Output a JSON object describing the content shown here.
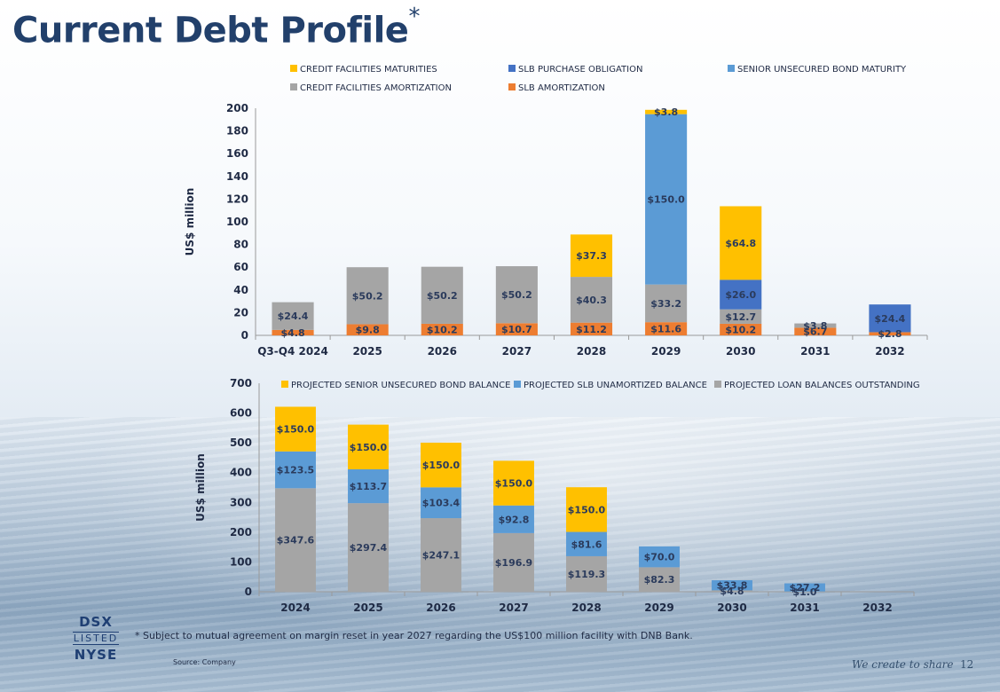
{
  "page": {
    "title": "Current Debt Profile",
    "title_mark": "*",
    "footnote": "*  Subject to mutual agreement on margin reset in year 2027 regarding the US$100 million facility with DNB Bank.",
    "source": "Source: Company",
    "slogan": "We create to share",
    "page_number": "12",
    "logo": {
      "line1": "DSX",
      "line2": "LISTED",
      "line3": "NYSE"
    }
  },
  "chart_data": [
    {
      "type": "bar",
      "stacked": true,
      "ylabel": "US$ million",
      "xlabel": "",
      "ylim": [
        0,
        200
      ],
      "yticks": [
        0,
        20,
        40,
        60,
        80,
        100,
        120,
        140,
        160,
        180,
        200
      ],
      "categories": [
        "Q3-Q4 2024",
        "2025",
        "2026",
        "2027",
        "2028",
        "2029",
        "2030",
        "2031",
        "2032"
      ],
      "legend_position": "top",
      "series": [
        {
          "name": "SLB AMORTIZATION",
          "color": "#ed7d31",
          "values": [
            4.8,
            9.8,
            10.2,
            10.7,
            11.2,
            11.6,
            10.2,
            6.7,
            2.8
          ],
          "labels": [
            "$4.8",
            "$9.8",
            "$10.2",
            "$10.7",
            "$11.2",
            "$11.6",
            "$10.2",
            "$6.7",
            "$2.8"
          ]
        },
        {
          "name": "CREDIT FACILITIES AMORTIZATION",
          "color": "#a5a5a5",
          "values": [
            24.4,
            50.2,
            50.2,
            50.2,
            40.3,
            33.2,
            12.7,
            3.8,
            0
          ],
          "labels": [
            "$24.4",
            "$50.2",
            "$50.2",
            "$50.2",
            "$40.3",
            "$33.2",
            "$12.7",
            "$3.8",
            ""
          ]
        },
        {
          "name": "SLB PURCHASE OBLIGATION",
          "color": "#4472c4",
          "values": [
            0,
            0,
            0,
            0,
            0,
            0,
            26.0,
            0,
            24.4
          ],
          "labels": [
            "",
            "",
            "",
            "",
            "",
            "",
            "$26.0",
            "",
            "$24.4"
          ]
        },
        {
          "name": "SENIOR UNSECURED BOND MATURITY",
          "color": "#5b9bd5",
          "values": [
            0,
            0,
            0,
            0,
            0,
            150.0,
            0,
            0,
            0
          ],
          "labels": [
            "",
            "",
            "",
            "",
            "",
            "$150.0",
            "",
            "",
            ""
          ]
        },
        {
          "name": "CREDIT FACILITIES MATURITIES",
          "color": "#ffc000",
          "values": [
            0,
            0,
            0,
            0,
            37.3,
            3.8,
            64.8,
            0,
            0
          ],
          "labels": [
            "",
            "",
            "",
            "",
            "$37.3",
            "$3.8",
            "$64.8",
            "",
            ""
          ]
        }
      ],
      "legend_order": [
        "CREDIT FACILITIES MATURITIES",
        "SLB PURCHASE OBLIGATION",
        "SENIOR UNSECURED BOND MATURITY",
        "CREDIT FACILITIES AMORTIZATION",
        "SLB AMORTIZATION"
      ]
    },
    {
      "type": "bar",
      "stacked": true,
      "ylabel": "US$ million",
      "xlabel": "",
      "ylim": [
        0,
        700
      ],
      "yticks": [
        0,
        100,
        200,
        300,
        400,
        500,
        600,
        700
      ],
      "categories": [
        "2024",
        "2025",
        "2026",
        "2027",
        "2028",
        "2029",
        "2030",
        "2031",
        "2032"
      ],
      "legend_position": "top",
      "series": [
        {
          "name": "PROJECTED LOAN BALANCES OUTSTANDING",
          "color": "#a5a5a5",
          "values": [
            347.6,
            297.4,
            247.1,
            196.9,
            119.3,
            82.3,
            4.8,
            1.0,
            0
          ],
          "labels": [
            "$347.6",
            "$297.4",
            "$247.1",
            "$196.9",
            "$119.3",
            "$82.3",
            "$4.8",
            "$1.0",
            ""
          ]
        },
        {
          "name": "PROJECTED SLB UNAMORTIZED BALANCE",
          "color": "#5b9bd5",
          "values": [
            123.5,
            113.7,
            103.4,
            92.8,
            81.6,
            70.0,
            33.8,
            27.2,
            0
          ],
          "labels": [
            "$123.5",
            "$113.7",
            "$103.4",
            "$92.8",
            "$81.6",
            "$70.0",
            "$33.8",
            "$27.2",
            ""
          ]
        },
        {
          "name": "PROJECTED SENIOR UNSECURED BOND BALANCE",
          "color": "#ffc000",
          "values": [
            150.0,
            150.0,
            150.0,
            150.0,
            150.0,
            0,
            0,
            0,
            0
          ],
          "labels": [
            "$150.0",
            "$150.0",
            "$150.0",
            "$150.0",
            "$150.0",
            "",
            "",
            "",
            ""
          ]
        }
      ],
      "legend_order": [
        "PROJECTED SENIOR UNSECURED BOND BALANCE",
        "PROJECTED SLB UNAMORTIZED BALANCE",
        "PROJECTED LOAN BALANCES OUTSTANDING"
      ]
    }
  ]
}
